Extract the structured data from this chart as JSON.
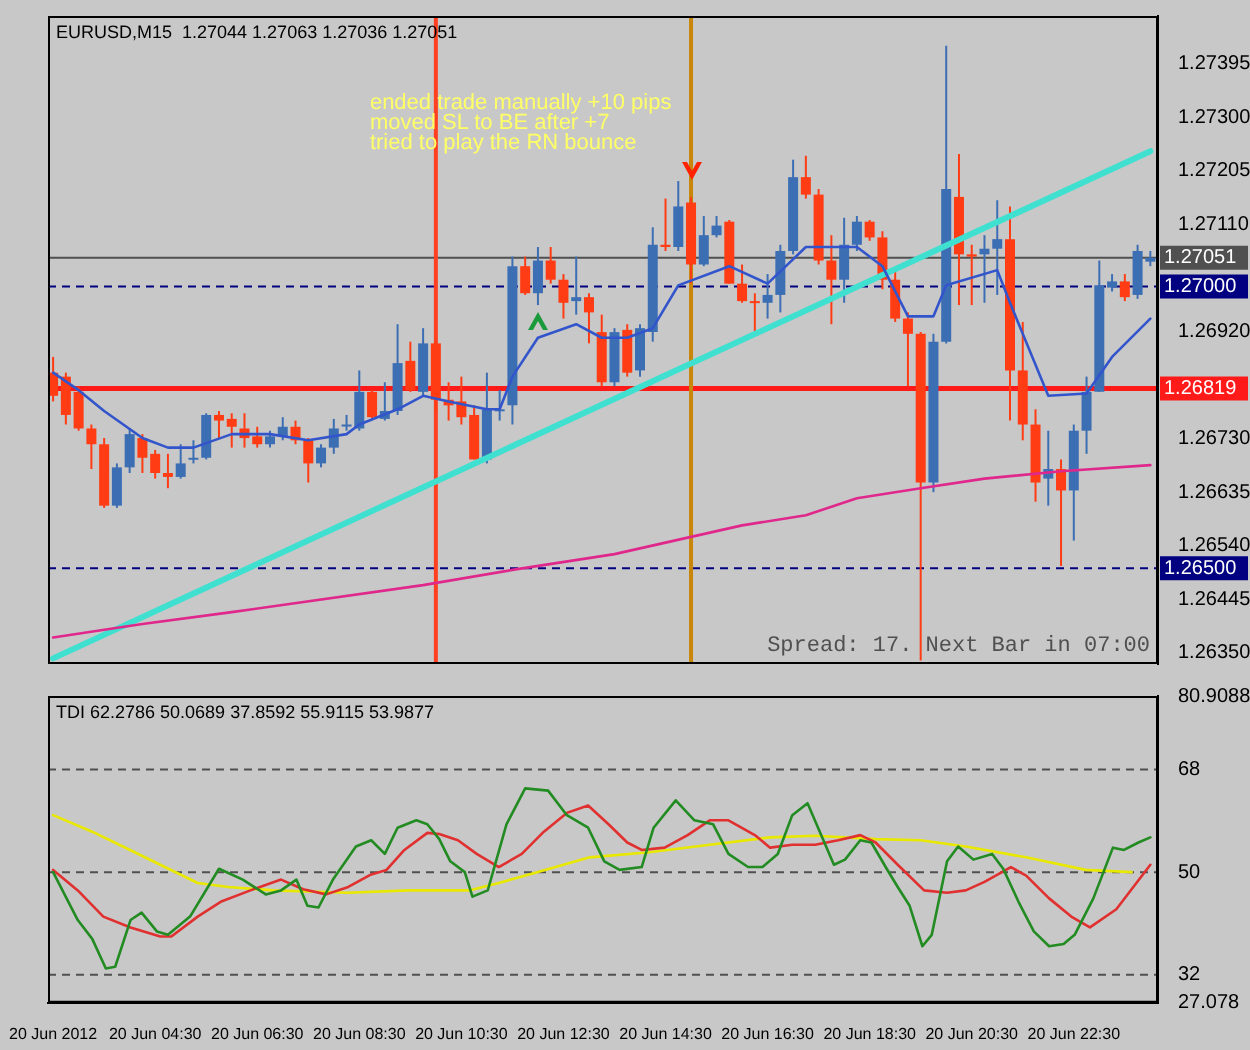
{
  "chart_data": [
    {
      "type": "candlestick",
      "title": "EURUSD,M15  1.27044 1.27063 1.27036 1.27051",
      "x": [
        "2012-06-20T02:30",
        "2012-06-20T02:45",
        "2012-06-20T03:00",
        "2012-06-20T03:15",
        "2012-06-20T03:30",
        "2012-06-20T03:45",
        "2012-06-20T04:00",
        "2012-06-20T04:15",
        "2012-06-20T04:30",
        "2012-06-20T04:45",
        "2012-06-20T05:00",
        "2012-06-20T05:15",
        "2012-06-20T05:30",
        "2012-06-20T05:45",
        "2012-06-20T06:00",
        "2012-06-20T06:15",
        "2012-06-20T06:30",
        "2012-06-20T06:45",
        "2012-06-20T07:00",
        "2012-06-20T07:15",
        "2012-06-20T07:30",
        "2012-06-20T07:45",
        "2012-06-20T08:00",
        "2012-06-20T08:15",
        "2012-06-20T08:30",
        "2012-06-20T08:45",
        "2012-06-20T09:00",
        "2012-06-20T09:15",
        "2012-06-20T09:30",
        "2012-06-20T09:45",
        "2012-06-20T10:00",
        "2012-06-20T10:15",
        "2012-06-20T10:30",
        "2012-06-20T10:45",
        "2012-06-20T11:00",
        "2012-06-20T11:15",
        "2012-06-20T11:30",
        "2012-06-20T11:45",
        "2012-06-20T12:00",
        "2012-06-20T12:15",
        "2012-06-20T12:30",
        "2012-06-20T12:45",
        "2012-06-20T13:00",
        "2012-06-20T13:15",
        "2012-06-20T13:30",
        "2012-06-20T13:45",
        "2012-06-20T14:00",
        "2012-06-20T14:15",
        "2012-06-20T14:30",
        "2012-06-20T14:45",
        "2012-06-20T15:00",
        "2012-06-20T15:15",
        "2012-06-20T15:30",
        "2012-06-20T15:45",
        "2012-06-20T16:00",
        "2012-06-20T16:15",
        "2012-06-20T16:30",
        "2012-06-20T16:45",
        "2012-06-20T17:00",
        "2012-06-20T17:15",
        "2012-06-20T17:30",
        "2012-06-20T17:45",
        "2012-06-20T18:00",
        "2012-06-20T18:15",
        "2012-06-20T18:30",
        "2012-06-20T18:45",
        "2012-06-20T19:00",
        "2012-06-20T19:15",
        "2012-06-20T19:30",
        "2012-06-20T19:45",
        "2012-06-20T20:00",
        "2012-06-20T20:15",
        "2012-06-20T20:30",
        "2012-06-20T20:45",
        "2012-06-20T21:00",
        "2012-06-20T21:15",
        "2012-06-20T21:30",
        "2012-06-20T21:45",
        "2012-06-20T22:00",
        "2012-06-20T22:15",
        "2012-06-20T22:30",
        "2012-06-20T22:45",
        "2012-06-20T23:00",
        "2012-06-20T23:15",
        "2012-06-20T23:30",
        "2012-06-20T23:45",
        "2012-06-21T00:00"
      ],
      "ohlc": [
        [
          1.26847,
          1.26875,
          1.26796,
          1.26806
        ],
        [
          1.2684,
          1.26847,
          1.26755,
          1.26772
        ],
        [
          1.26813,
          1.26823,
          1.26744,
          1.26748
        ],
        [
          1.26748,
          1.26755,
          1.26676,
          1.2672
        ],
        [
          1.2672,
          1.26731,
          1.26607,
          1.26611
        ],
        [
          1.26611,
          1.26686,
          1.26607,
          1.26679
        ],
        [
          1.26679,
          1.26748,
          1.26669,
          1.26738
        ],
        [
          1.26731,
          1.26738,
          1.26669,
          1.26696
        ],
        [
          1.26703,
          1.2671,
          1.26659,
          1.26669
        ],
        [
          1.26669,
          1.26703,
          1.26642,
          1.26662
        ],
        [
          1.26662,
          1.2672,
          1.26659,
          1.26686
        ],
        [
          1.26693,
          1.26727,
          1.26686,
          1.26696
        ],
        [
          1.26696,
          1.26775,
          1.26693,
          1.26772
        ],
        [
          1.26772,
          1.26779,
          1.26731,
          1.26762
        ],
        [
          1.26765,
          1.26775,
          1.26714,
          1.26751
        ],
        [
          1.26748,
          1.26775,
          1.26714,
          1.26731
        ],
        [
          1.26734,
          1.26751,
          1.26714,
          1.2672
        ],
        [
          1.2672,
          1.26744,
          1.26714,
          1.26734
        ],
        [
          1.26734,
          1.26768,
          1.26727,
          1.26751
        ],
        [
          1.26751,
          1.26762,
          1.2672,
          1.26727
        ],
        [
          1.26727,
          1.26731,
          1.26652,
          1.26686
        ],
        [
          1.26686,
          1.2672,
          1.26679,
          1.26714
        ],
        [
          1.26714,
          1.26765,
          1.26703,
          1.26748
        ],
        [
          1.26755,
          1.26772,
          1.26744,
          1.26755
        ],
        [
          1.26748,
          1.26851,
          1.26744,
          1.26813
        ],
        [
          1.26813,
          1.26816,
          1.26765,
          1.26768
        ],
        [
          1.26765,
          1.2683,
          1.26762,
          1.26779
        ],
        [
          1.26779,
          1.26933,
          1.26772,
          1.26864
        ],
        [
          1.26868,
          1.26902,
          1.26813,
          1.26816
        ],
        [
          1.26813,
          1.26926,
          1.26806,
          1.26899
        ],
        [
          1.26899,
          1.26902,
          1.26779,
          1.26799
        ],
        [
          1.26799,
          1.2683,
          1.26762,
          1.26789
        ],
        [
          1.26796,
          1.2684,
          1.26755,
          1.26768
        ],
        [
          1.26772,
          1.26789,
          1.26693,
          1.26693
        ],
        [
          1.26693,
          1.26847,
          1.26686,
          1.26782
        ],
        [
          1.26782,
          1.26816,
          1.26762,
          1.26782
        ],
        [
          1.26789,
          1.27053,
          1.26755,
          1.27036
        ],
        [
          1.27036,
          1.27053,
          1.26985,
          1.26988
        ],
        [
          1.26988,
          1.2707,
          1.26967,
          1.27046
        ],
        [
          1.27046,
          1.2707,
          1.27005,
          1.27012
        ],
        [
          1.27012,
          1.27022,
          1.26943,
          1.26971
        ],
        [
          1.26974,
          1.27053,
          1.2695,
          1.26981
        ],
        [
          1.26981,
          1.26988,
          1.26899,
          1.26954
        ],
        [
          1.26919,
          1.2695,
          1.26823,
          1.2683
        ],
        [
          1.2683,
          1.26926,
          1.26823,
          1.26919
        ],
        [
          1.26923,
          1.26933,
          1.2684,
          1.26847
        ],
        [
          1.26851,
          1.26933,
          1.2684,
          1.26926
        ],
        [
          1.26919,
          1.27105,
          1.26902,
          1.27074
        ],
        [
          1.27074,
          1.27156,
          1.27063,
          1.2707
        ],
        [
          1.2707,
          1.27187,
          1.27063,
          1.27142
        ],
        [
          1.27149,
          1.27159,
          1.27005,
          1.27039
        ],
        [
          1.27039,
          1.27125,
          1.27036,
          1.27091
        ],
        [
          1.27091,
          1.27125,
          1.27087,
          1.27108
        ],
        [
          1.27115,
          1.27118,
          1.27005,
          1.27005
        ],
        [
          1.27005,
          1.27039,
          1.26971,
          1.26974
        ],
        [
          1.26974,
          1.26988,
          1.26919,
          1.26971
        ],
        [
          1.26971,
          1.27022,
          1.26943,
          1.26985
        ],
        [
          1.26985,
          1.27074,
          1.26954,
          1.27063
        ],
        [
          1.27063,
          1.27225,
          1.27057,
          1.27194
        ],
        [
          1.27194,
          1.27232,
          1.27156,
          1.27163
        ],
        [
          1.27163,
          1.27173,
          1.27039,
          1.27046
        ],
        [
          1.27046,
          1.27091,
          1.26933,
          1.27012
        ],
        [
          1.27012,
          1.27122,
          1.26971,
          1.27074
        ],
        [
          1.27074,
          1.27125,
          1.27063,
          1.27115
        ],
        [
          1.27115,
          1.27118,
          1.27081,
          1.27087
        ],
        [
          1.27087,
          1.27098,
          1.26995,
          1.27012
        ],
        [
          1.27012,
          1.27029,
          1.26937,
          1.26943
        ],
        [
          1.26943,
          1.26954,
          1.26823,
          1.26916
        ],
        [
          1.26916,
          1.26919,
          1.26336,
          1.26652
        ],
        [
          1.26652,
          1.26916,
          1.26635,
          1.26902
        ],
        [
          1.26902,
          1.27427,
          1.26899,
          1.27173
        ],
        [
          1.27159,
          1.27235,
          1.26967,
          1.27057
        ],
        [
          1.27057,
          1.27074,
          1.26967,
          1.27053
        ],
        [
          1.27057,
          1.27091,
          1.26971,
          1.27067
        ],
        [
          1.27067,
          1.27153,
          1.26985,
          1.27084
        ],
        [
          1.27084,
          1.27142,
          1.26762,
          1.26851
        ],
        [
          1.26851,
          1.26937,
          1.26727,
          1.26755
        ],
        [
          1.26755,
          1.26782,
          1.26618,
          1.26652
        ],
        [
          1.26659,
          1.26744,
          1.26611,
          1.26676
        ],
        [
          1.26676,
          1.26693,
          1.26504,
          1.26638
        ],
        [
          1.26638,
          1.26755,
          1.26549,
          1.26744
        ],
        [
          1.26744,
          1.2684,
          1.26703,
          1.26813
        ],
        [
          1.26813,
          1.27046,
          1.26813,
          1.27002
        ],
        [
          1.26998,
          1.27022,
          1.26991,
          1.27009
        ],
        [
          1.27009,
          1.27022,
          1.26974,
          1.26981
        ],
        [
          1.26985,
          1.27074,
          1.26978,
          1.27063
        ],
        [
          1.27044,
          1.27063,
          1.27036,
          1.27051
        ]
      ],
      "colors": [
        "#ff3c14",
        "#ff3c14",
        "#ff3c14",
        "#ff3c14",
        "#ff3c14",
        "#3c6eb4",
        "#3c6eb4",
        "#ff3c14",
        "#ff3c14",
        "#ff3c14",
        "#3c6eb4",
        "#3c6eb4",
        "#3c6eb4",
        "#ff3c14",
        "#ff3c14",
        "#ff3c14",
        "#ff3c14",
        "#3c6eb4",
        "#3c6eb4",
        "#ff3c14",
        "#ff3c14",
        "#3c6eb4",
        "#3c6eb4",
        "#3c6eb4",
        "#3c6eb4",
        "#ff3c14",
        "#3c6eb4",
        "#3c6eb4",
        "#ff3c14",
        "#3c6eb4",
        "#ff3c14",
        "#ff3c14",
        "#ff3c14",
        "#ff3c14",
        "#3c6eb4",
        "#3c6eb4",
        "#3c6eb4",
        "#ff3c14",
        "#3c6eb4",
        "#ff3c14",
        "#ff3c14",
        "#3c6eb4",
        "#ff3c14",
        "#ff3c14",
        "#3c6eb4",
        "#ff3c14",
        "#3c6eb4",
        "#3c6eb4",
        "#ff3c14",
        "#3c6eb4",
        "#ff3c14",
        "#3c6eb4",
        "#3c6eb4",
        "#ff3c14",
        "#ff3c14",
        "#ff3c14",
        "#3c6eb4",
        "#3c6eb4",
        "#3c6eb4",
        "#ff3c14",
        "#ff3c14",
        "#ff3c14",
        "#3c6eb4",
        "#3c6eb4",
        "#ff3c14",
        "#ff3c14",
        "#ff3c14",
        "#ff3c14",
        "#ff3c14",
        "#3c6eb4",
        "#3c6eb4",
        "#ff3c14",
        "#ff3c14",
        "#3c6eb4",
        "#3c6eb4",
        "#ff3c14",
        "#ff3c14",
        "#ff3c14",
        "#3c6eb4",
        "#ff3c14",
        "#3c6eb4",
        "#3c6eb4",
        "#3c6eb4",
        "#3c6eb4",
        "#ff3c14",
        "#3c6eb4",
        "#3c6eb4"
      ],
      "series": [
        {
          "type": "line",
          "color": "#3355cc",
          "x": [
            "2012-06-20T02:30",
            "2012-06-20T03:00",
            "2012-06-20T03:30",
            "2012-06-20T04:15",
            "2012-06-20T04:45",
            "2012-06-20T05:15",
            "2012-06-20T06:00",
            "2012-06-20T06:45",
            "2012-06-20T07:30",
            "2012-06-20T08:15",
            "2012-06-20T08:30",
            "2012-06-20T09:15",
            "2012-06-20T09:45",
            "2012-06-20T10:15",
            "2012-06-20T11:00",
            "2012-06-20T11:15",
            "2012-06-20T11:30",
            "2012-06-20T12:00",
            "2012-06-20T12:45",
            "2012-06-20T13:15",
            "2012-06-20T13:45",
            "2012-06-20T14:15",
            "2012-06-20T14:45",
            "2012-06-20T15:45",
            "2012-06-20T16:30",
            "2012-06-20T17:15",
            "2012-06-20T18:15",
            "2012-06-20T18:45",
            "2012-06-20T19:15",
            "2012-06-20T19:45",
            "2012-06-20T20:00",
            "2012-06-20T21:00",
            "2012-06-20T21:15",
            "2012-06-20T22:00",
            "2012-06-20T22:45",
            "2012-06-20T23:15",
            "2012-06-21T00:00"
          ],
          "values": [
            1.26847,
            1.26816,
            1.26779,
            1.26731,
            1.26714,
            1.26714,
            1.26738,
            1.26738,
            1.26727,
            1.26738,
            1.26755,
            1.26782,
            1.26806,
            1.26796,
            1.26782,
            1.26782,
            1.2684,
            1.26909,
            1.26933,
            1.26909,
            1.26909,
            1.26926,
            1.27002,
            1.27036,
            1.27005,
            1.2707,
            1.2707,
            1.27036,
            1.26947,
            1.26947,
            1.27002,
            1.27029,
            1.26971,
            1.26806,
            1.2681,
            1.26875,
            1.26943
          ]
        },
        {
          "type": "line",
          "color": "#e0288c",
          "x": [
            "2012-06-20T02:30",
            "2012-06-20T04:15",
            "2012-06-20T06:00",
            "2012-06-20T09:45",
            "2012-06-20T11:30",
            "2012-06-20T13:30",
            "2012-06-20T16:00",
            "2012-06-20T17:15",
            "2012-06-20T18:15",
            "2012-06-20T19:30",
            "2012-06-20T20:45",
            "2012-06-20T22:15",
            "2012-06-21T00:00"
          ],
          "values": [
            1.26377,
            1.26401,
            1.26422,
            1.2647,
            1.26497,
            1.26525,
            1.26576,
            1.26594,
            1.26624,
            1.26642,
            1.26659,
            1.26672,
            1.26683
          ]
        },
        {
          "type": "line",
          "color": "#40e0d0",
          "x": [
            "2012-06-20T02:30",
            "2012-06-21T00:00"
          ],
          "values": [
            1.2634,
            1.2724
          ]
        }
      ],
      "xlim": [
        "2012-06-20T02:24",
        "2012-06-21T00:09"
      ],
      "ylim": [
        1.2633,
        1.2748
      ],
      "yticks": [
        1.27395,
        {
          "value": 1.273,
          "label": "1.27300"
        },
        1.27205,
        {
          "value": 1.2711,
          "label": "1.27110"
        },
        {
          "value": 1.2692,
          "label": "1.26920"
        },
        {
          "value": 1.2673,
          "label": "1.26730"
        },
        1.26635,
        {
          "value": 1.2654,
          "label": "1.26540"
        },
        1.26445,
        {
          "value": 1.2635,
          "label": "1.26350"
        }
      ],
      "tick_labels": "y",
      "legend": false,
      "marker": "none",
      "ref_lines": [
        {
          "axis": "y",
          "value": 1.27051,
          "label": "1.27051",
          "color": "#505050",
          "line_style": "solid"
        },
        {
          "axis": "y",
          "value": 1.27,
          "label": "1.27000",
          "color": "#000080",
          "line_style": "dashed"
        },
        {
          "axis": "y",
          "value": 1.26819,
          "label": "1.26819",
          "color": "#ff1a1a",
          "line_style": "solid"
        },
        {
          "axis": "y",
          "value": 1.265,
          "label": "1.26500",
          "color": "#000080",
          "line_style": "dashed"
        },
        {
          "axis": "x",
          "value": "2012-06-20T10:00",
          "color": "#ff4020",
          "line_style": "solid"
        },
        {
          "axis": "x",
          "value": "2012-06-20T15:00",
          "color": "#c8860a",
          "line_style": "solid"
        }
      ],
      "annotations": [
        "ended trade manually +10 pips",
        "moved SL to BE after +7",
        "tried to play the RN bounce",
        "Spread: 17. Next Bar in 07:00"
      ]
    },
    {
      "type": "line",
      "title": "TDI 62.2786 50.0689 37.8592 55.9115 53.9877",
      "series": [
        {
          "type": "line",
          "color": "#228b22",
          "x": [
            "2012-06-20T02:30",
            "2012-06-20T02:59",
            "2012-06-20T03:16",
            "2012-06-20T03:32",
            "2012-06-20T03:43",
            "2012-06-20T04:01",
            "2012-06-20T04:14",
            "2012-06-20T04:32",
            "2012-06-20T04:45",
            "2012-06-20T05:11",
            "2012-06-20T05:45",
            "2012-06-20T06:13",
            "2012-06-20T06:40",
            "2012-06-20T06:58",
            "2012-06-20T07:16",
            "2012-06-20T07:29",
            "2012-06-20T07:42",
            "2012-06-20T07:59",
            "2012-06-20T08:26",
            "2012-06-20T08:44",
            "2012-06-20T09:00",
            "2012-06-20T09:15",
            "2012-06-20T09:37",
            "2012-06-20T09:50",
            "2012-06-20T10:04",
            "2012-06-20T10:17",
            "2012-06-20T10:34",
            "2012-06-20T10:43",
            "2012-06-20T11:01",
            "2012-06-20T11:23",
            "2012-06-20T11:45",
            "2012-06-20T12:12",
            "2012-06-20T12:34",
            "2012-06-20T12:59",
            "2012-06-20T13:18",
            "2012-06-20T13:36",
            "2012-06-20T14:02",
            "2012-06-20T14:16",
            "2012-06-20T14:42",
            "2012-06-20T15:04",
            "2012-06-20T15:26",
            "2012-06-20T15:44",
            "2012-06-20T16:07",
            "2012-06-20T16:24",
            "2012-06-20T16:42",
            "2012-06-20T16:59",
            "2012-06-20T17:17",
            "2012-06-20T17:35",
            "2012-06-20T17:48",
            "2012-06-20T18:01",
            "2012-06-20T18:19",
            "2012-06-20T18:32",
            "2012-06-20T18:50",
            "2012-06-20T19:03",
            "2012-06-20T19:17",
            "2012-06-20T19:32",
            "2012-06-20T19:43",
            "2012-06-20T20:01",
            "2012-06-20T20:14",
            "2012-06-20T20:32",
            "2012-06-20T20:54",
            "2012-06-20T21:07",
            "2012-06-20T21:25",
            "2012-06-20T21:43",
            "2012-06-20T22:01",
            "2012-06-20T22:18",
            "2012-06-20T22:31",
            "2012-06-20T22:53",
            "2012-06-20T23:16",
            "2012-06-20T23:29",
            "2012-06-20T23:46",
            "2012-06-21T00:00"
          ],
          "values": [
            50.0,
            41.6,
            38.3,
            33.1,
            33.4,
            41.6,
            42.9,
            39.6,
            39.0,
            42.2,
            50.6,
            48.7,
            46.1,
            46.8,
            48.7,
            44.1,
            43.8,
            48.7,
            54.5,
            55.6,
            53.2,
            57.8,
            59.1,
            58.4,
            55.8,
            51.9,
            50.0,
            45.7,
            46.8,
            58.4,
            64.7,
            64.3,
            60.0,
            57.8,
            51.9,
            50.4,
            50.9,
            57.8,
            62.6,
            59.1,
            58.4,
            53.2,
            50.9,
            50.9,
            53.2,
            60.0,
            62.1,
            55.8,
            51.3,
            52.2,
            55.6,
            55.2,
            50.6,
            47.4,
            44.1,
            37.0,
            39.0,
            51.9,
            54.5,
            52.2,
            53.2,
            50.6,
            44.8,
            39.6,
            37.0,
            37.4,
            39.0,
            45.4,
            54.3,
            53.9,
            55.2,
            56.1
          ]
        },
        {
          "type": "line",
          "color": "#e03030",
          "x": [
            "2012-06-20T02:30",
            "2012-06-20T02:59",
            "2012-06-20T03:29",
            "2012-06-20T04:01",
            "2012-06-20T04:36",
            "2012-06-20T04:49",
            "2012-06-20T05:20",
            "2012-06-20T05:47",
            "2012-06-20T06:22",
            "2012-06-20T06:58",
            "2012-06-20T07:24",
            "2012-06-20T07:51",
            "2012-06-20T08:17",
            "2012-06-20T08:44",
            "2012-06-20T09:02",
            "2012-06-20T09:23",
            "2012-06-20T09:50",
            "2012-06-20T10:04",
            "2012-06-20T10:26",
            "2012-06-20T10:48",
            "2012-06-20T11:14",
            "2012-06-20T11:41",
            "2012-06-20T12:07",
            "2012-06-20T12:34",
            "2012-06-20T12:59",
            "2012-06-20T13:23",
            "2012-06-20T13:45",
            "2012-06-20T14:02",
            "2012-06-20T14:29",
            "2012-06-20T14:56",
            "2012-06-20T15:22",
            "2012-06-20T15:44",
            "2012-06-20T16:15",
            "2012-06-20T16:33",
            "2012-06-20T16:59",
            "2012-06-20T17:26",
            "2012-06-20T17:53",
            "2012-06-20T18:19",
            "2012-06-20T18:37",
            "2012-06-20T19:03",
            "2012-06-20T19:34",
            "2012-06-20T20:01",
            "2012-06-20T20:23",
            "2012-06-20T20:45",
            "2012-06-20T21:16",
            "2012-06-20T21:34",
            "2012-06-20T22:01",
            "2012-06-20T22:27",
            "2012-06-20T22:49",
            "2012-06-20T23:20",
            "2012-06-21T00:00"
          ],
          "values": [
            50.4,
            46.8,
            42.2,
            40.3,
            38.7,
            38.7,
            42.2,
            44.8,
            46.8,
            48.7,
            47.0,
            46.1,
            47.4,
            49.6,
            50.4,
            53.9,
            56.9,
            56.7,
            55.6,
            53.2,
            50.9,
            53.2,
            57.1,
            60.4,
            61.7,
            58.4,
            55.2,
            53.9,
            54.3,
            56.5,
            59.1,
            59.1,
            56.5,
            54.3,
            54.8,
            54.8,
            55.6,
            56.5,
            55.2,
            51.3,
            46.8,
            46.4,
            46.8,
            48.3,
            50.9,
            49.4,
            45.4,
            42.2,
            40.3,
            43.5,
            51.3
          ]
        },
        {
          "type": "line",
          "color": "#e8e800",
          "x": [
            "2012-06-20T02:30",
            "2012-06-20T03:16",
            "2012-06-20T03:52",
            "2012-06-20T04:36",
            "2012-06-20T05:20",
            "2012-06-20T05:56",
            "2012-06-20T06:49",
            "2012-06-20T08:17",
            "2012-06-20T09:28",
            "2012-06-20T10:39",
            "2012-06-20T11:14",
            "2012-06-20T11:59",
            "2012-06-20T13:01",
            "2012-06-20T14:11",
            "2012-06-20T15:22",
            "2012-06-20T16:33",
            "2012-06-20T17:26",
            "2012-06-20T18:37",
            "2012-06-20T19:30",
            "2012-06-20T20:23",
            "2012-06-20T21:34",
            "2012-06-20T22:44",
            "2012-06-20T23:38"
          ],
          "values": [
            60.0,
            57.1,
            54.5,
            51.3,
            48.1,
            47.4,
            46.8,
            46.4,
            46.8,
            46.8,
            48.1,
            50.0,
            52.6,
            53.5,
            54.8,
            56.1,
            56.4,
            55.8,
            55.6,
            54.5,
            52.6,
            50.4,
            50.0
          ]
        }
      ],
      "xlim": [
        "2012-06-20T02:24",
        "2012-06-21T00:09"
      ],
      "ylim": [
        27.078,
        80.9088
      ],
      "xticks": [
        {
          "value": "2012-06-20T02:30",
          "label": "20 Jun 2012"
        },
        {
          "value": "2012-06-20T04:30",
          "label": "20 Jun 04:30"
        },
        {
          "value": "2012-06-20T06:30",
          "label": "20 Jun 06:30"
        },
        {
          "value": "2012-06-20T08:30",
          "label": "20 Jun 08:30"
        },
        {
          "value": "2012-06-20T10:30",
          "label": "20 Jun 10:30"
        },
        {
          "value": "2012-06-20T12:30",
          "label": "20 Jun 12:30"
        },
        {
          "value": "2012-06-20T14:30",
          "label": "20 Jun 14:30"
        },
        {
          "value": "2012-06-20T16:30",
          "label": "20 Jun 16:30"
        },
        {
          "value": "2012-06-20T18:30",
          "label": "20 Jun 18:30"
        },
        {
          "value": "2012-06-20T20:30",
          "label": "20 Jun 20:30"
        },
        {
          "value": "2012-06-20T22:30",
          "label": "20 Jun 22:30"
        }
      ],
      "yticks": [
        80.9088,
        68,
        50,
        32,
        27.078
      ],
      "legend": false,
      "marker": "none",
      "ref_lines": [
        {
          "axis": "y",
          "value": 68,
          "color": "#505050",
          "line_style": "dashed"
        },
        {
          "axis": "y",
          "value": 50,
          "color": "#505050",
          "line_style": "dashed"
        },
        {
          "axis": "y",
          "value": 32,
          "color": "#505050",
          "line_style": "dashed"
        }
      ]
    }
  ]
}
